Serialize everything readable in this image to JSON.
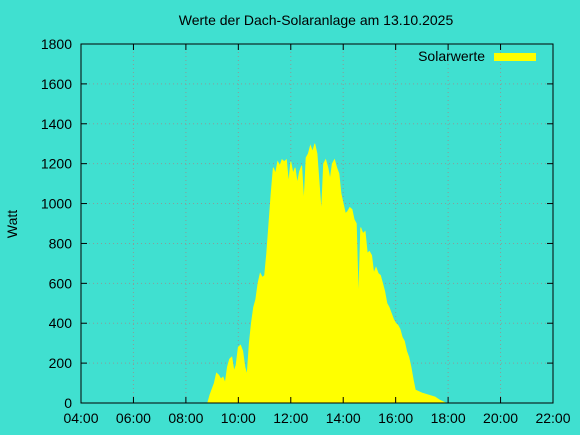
{
  "chart_data": {
    "type": "area",
    "title": "Werte der Dach-Solaranlage am 13.10.2025",
    "xlabel": "",
    "ylabel": "Watt",
    "xlim": [
      "04:00",
      "22:00"
    ],
    "ylim": [
      0,
      1800
    ],
    "x_ticks": [
      "04:00",
      "06:00",
      "08:00",
      "10:00",
      "12:00",
      "14:00",
      "16:00",
      "18:00",
      "20:00",
      "22:00"
    ],
    "y_ticks": [
      0,
      200,
      400,
      600,
      800,
      1000,
      1200,
      1400,
      1600,
      1800
    ],
    "grid": true,
    "legend_position": "top-right",
    "colors": {
      "background": "#40e0d0",
      "fill": "#ffff00",
      "grid": "#8a9c99"
    },
    "series": [
      {
        "name": "Solarwerte",
        "points": [
          [
            "08:50",
            0
          ],
          [
            "08:55",
            40
          ],
          [
            "09:00",
            70
          ],
          [
            "09:05",
            100
          ],
          [
            "09:10",
            150
          ],
          [
            "09:15",
            140
          ],
          [
            "09:20",
            120
          ],
          [
            "09:25",
            130
          ],
          [
            "09:30",
            100
          ],
          [
            "09:35",
            180
          ],
          [
            "09:40",
            220
          ],
          [
            "09:45",
            230
          ],
          [
            "09:50",
            160
          ],
          [
            "09:55",
            190
          ],
          [
            "10:00",
            280
          ],
          [
            "10:05",
            290
          ],
          [
            "10:10",
            260
          ],
          [
            "10:15",
            180
          ],
          [
            "10:20",
            140
          ],
          [
            "10:25",
            300
          ],
          [
            "10:30",
            400
          ],
          [
            "10:35",
            480
          ],
          [
            "10:40",
            520
          ],
          [
            "10:45",
            600
          ],
          [
            "10:50",
            650
          ],
          [
            "10:55",
            630
          ],
          [
            "11:00",
            640
          ],
          [
            "11:05",
            750
          ],
          [
            "11:10",
            900
          ],
          [
            "11:15",
            1050
          ],
          [
            "11:20",
            1180
          ],
          [
            "11:25",
            1150
          ],
          [
            "11:30",
            1210
          ],
          [
            "11:35",
            1190
          ],
          [
            "11:40",
            1220
          ],
          [
            "11:45",
            1210
          ],
          [
            "11:50",
            1220
          ],
          [
            "11:55",
            1100
          ],
          [
            "12:00",
            1210
          ],
          [
            "12:05",
            1150
          ],
          [
            "12:10",
            1180
          ],
          [
            "12:15",
            1100
          ],
          [
            "12:20",
            1160
          ],
          [
            "12:25",
            1190
          ],
          [
            "12:30",
            1000
          ],
          [
            "12:35",
            1230
          ],
          [
            "12:40",
            1250
          ],
          [
            "12:45",
            1290
          ],
          [
            "12:50",
            1260
          ],
          [
            "12:55",
            1300
          ],
          [
            "13:00",
            1250
          ],
          [
            "13:05",
            1100
          ],
          [
            "13:10",
            950
          ],
          [
            "13:15",
            1200
          ],
          [
            "13:20",
            1220
          ],
          [
            "13:25",
            1180
          ],
          [
            "13:30",
            1120
          ],
          [
            "13:35",
            1200
          ],
          [
            "13:40",
            1220
          ],
          [
            "13:45",
            1180
          ],
          [
            "13:50",
            1150
          ],
          [
            "13:55",
            1050
          ],
          [
            "14:00",
            1000
          ],
          [
            "14:05",
            950
          ],
          [
            "14:10",
            960
          ],
          [
            "14:15",
            980
          ],
          [
            "14:20",
            970
          ],
          [
            "14:25",
            920
          ],
          [
            "14:30",
            900
          ],
          [
            "14:35",
            500
          ],
          [
            "14:40",
            880
          ],
          [
            "14:45",
            850
          ],
          [
            "14:50",
            860
          ],
          [
            "14:55",
            750
          ],
          [
            "15:00",
            760
          ],
          [
            "15:05",
            740
          ],
          [
            "15:10",
            650
          ],
          [
            "15:15",
            680
          ],
          [
            "15:20",
            650
          ],
          [
            "15:25",
            640
          ],
          [
            "15:30",
            600
          ],
          [
            "15:35",
            560
          ],
          [
            "15:40",
            500
          ],
          [
            "15:45",
            480
          ],
          [
            "15:50",
            450
          ],
          [
            "15:55",
            420
          ],
          [
            "16:00",
            400
          ],
          [
            "16:05",
            390
          ],
          [
            "16:10",
            370
          ],
          [
            "16:15",
            330
          ],
          [
            "16:20",
            310
          ],
          [
            "16:25",
            260
          ],
          [
            "16:30",
            230
          ],
          [
            "16:35",
            180
          ],
          [
            "16:40",
            120
          ],
          [
            "16:45",
            65
          ],
          [
            "17:00",
            50
          ],
          [
            "17:15",
            40
          ],
          [
            "17:30",
            30
          ],
          [
            "17:40",
            15
          ],
          [
            "17:50",
            5
          ],
          [
            "17:55",
            0
          ]
        ]
      }
    ]
  }
}
